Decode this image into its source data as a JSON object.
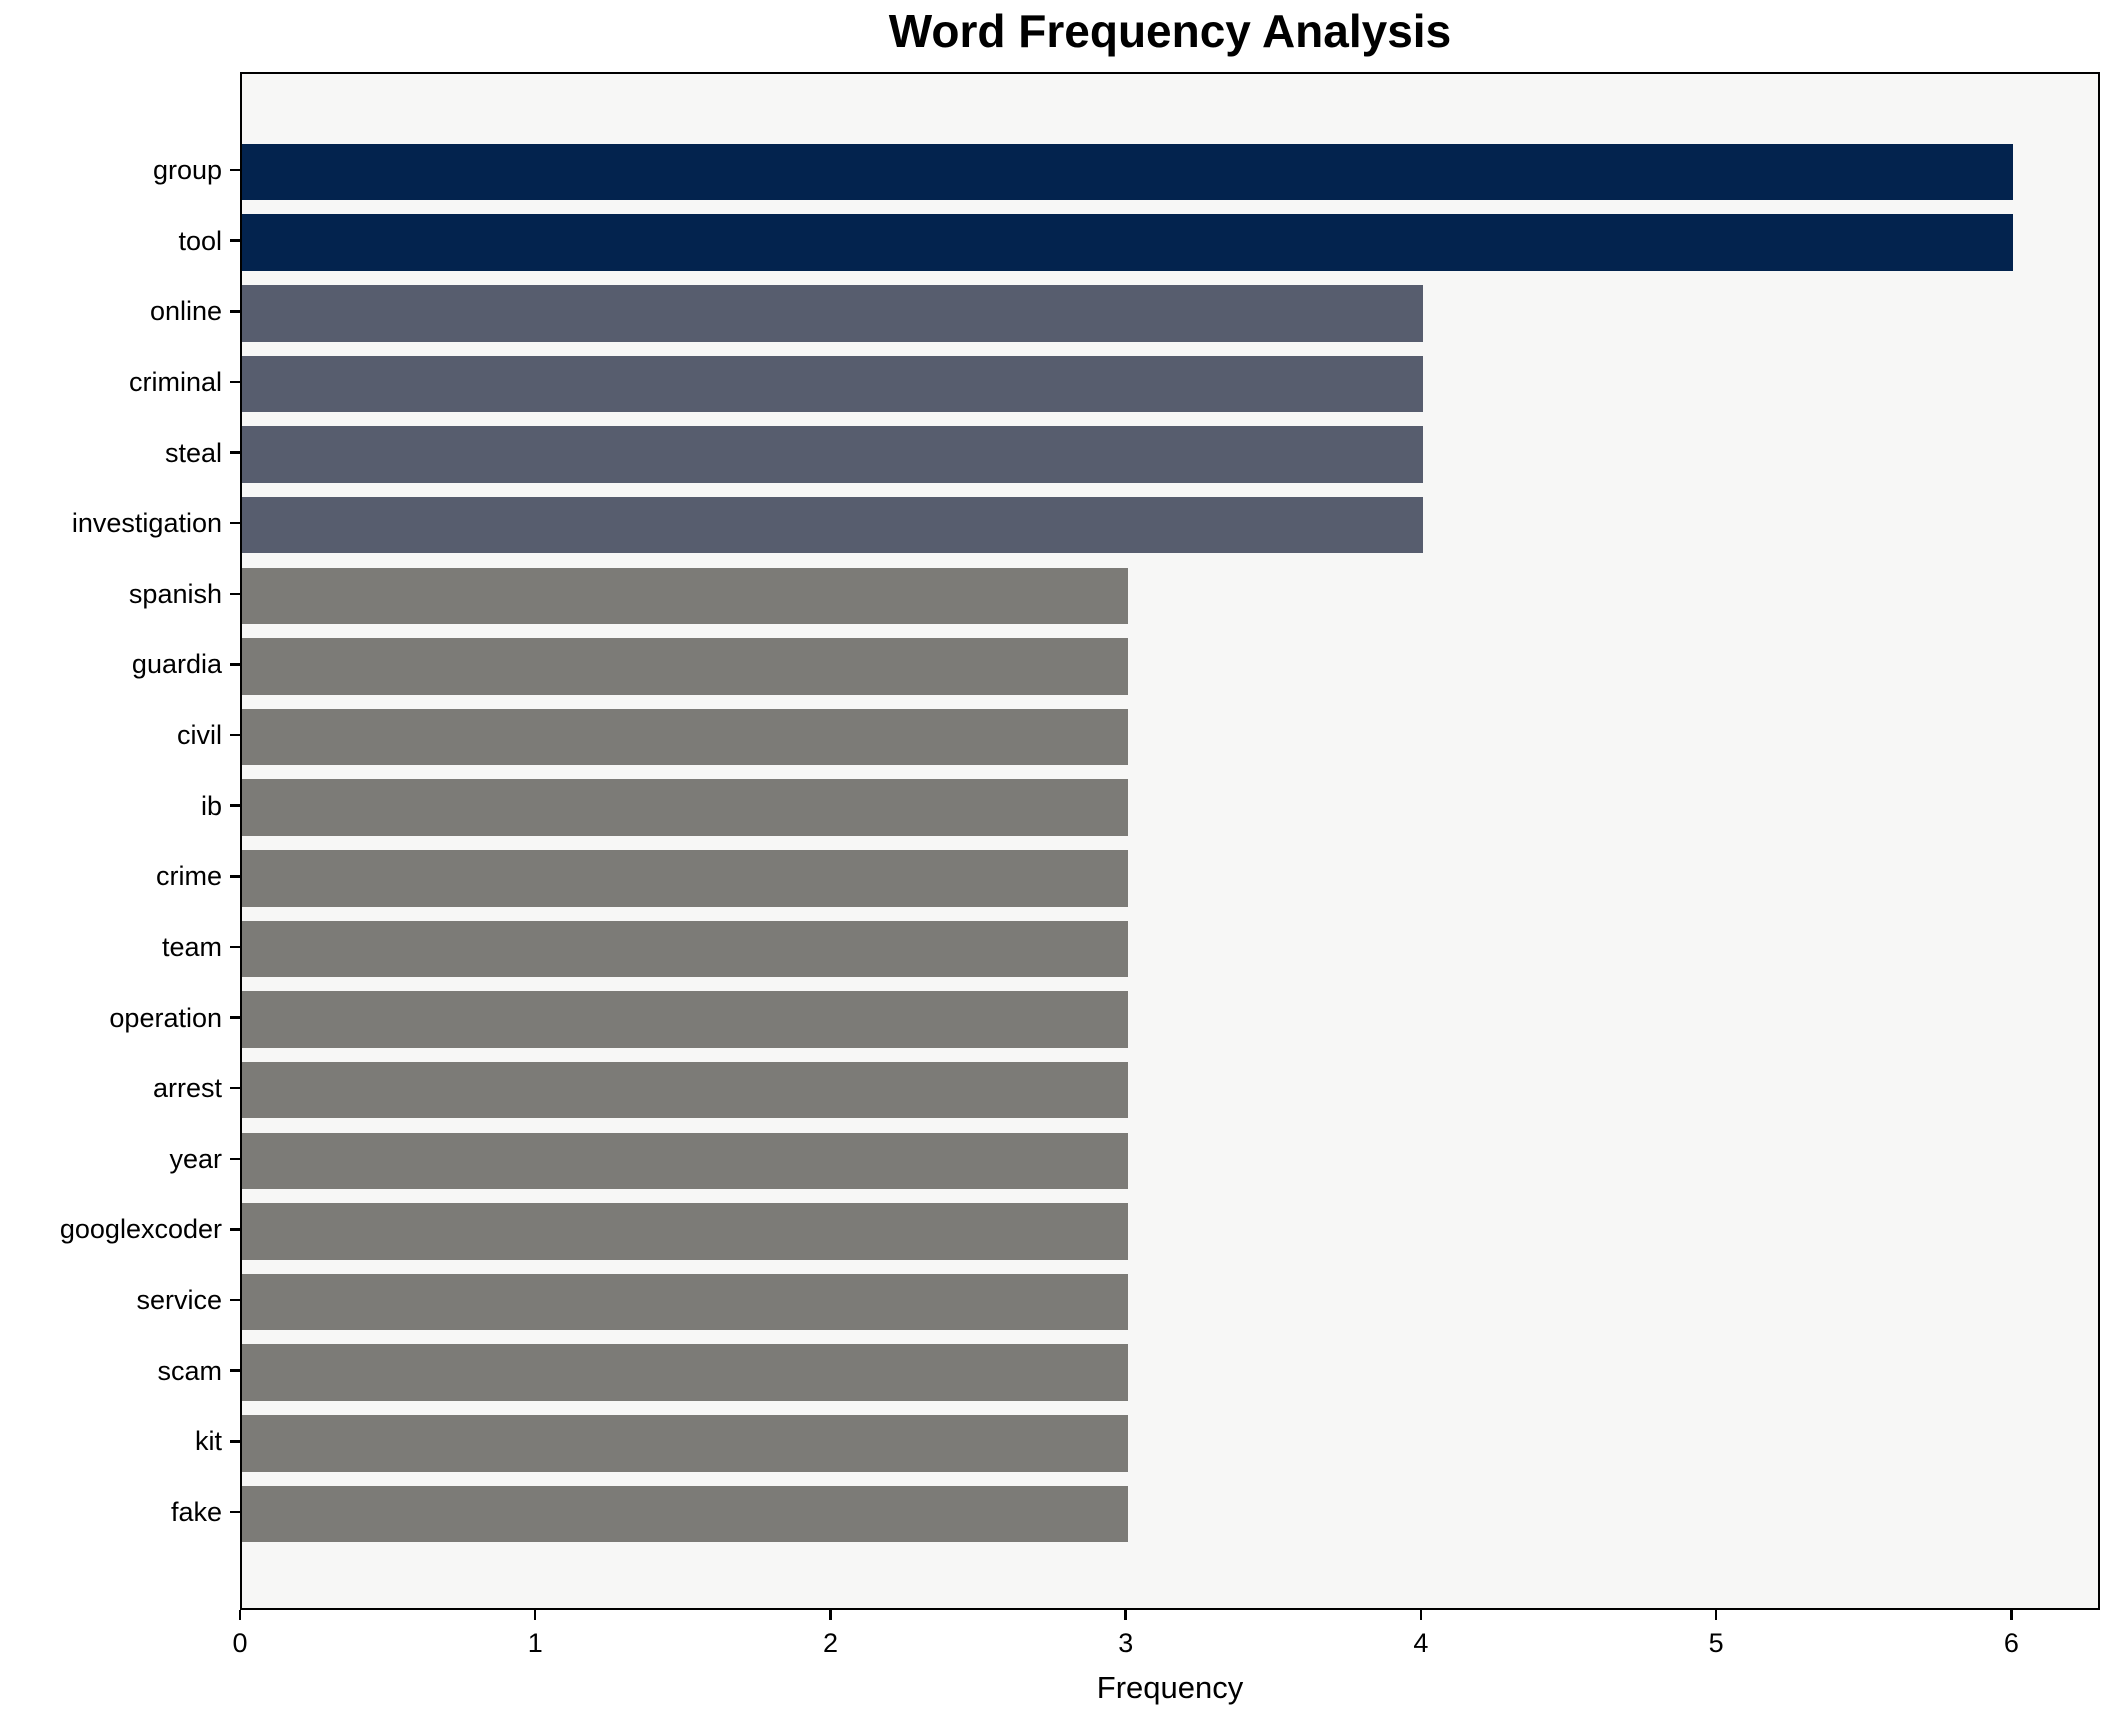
{
  "title": "Word Frequency Analysis",
  "xlabel": "Frequency",
  "colors": {
    "navy": "#03234e",
    "slate": "#575d6e",
    "gray": "#7c7b77",
    "plot_background": "#f7f7f6",
    "spine": "#000000",
    "figure_background": "#ffffff"
  },
  "chart_data": {
    "type": "bar",
    "orientation": "horizontal",
    "title": "Word Frequency Analysis",
    "xlabel": "Frequency",
    "ylabel": "",
    "categories": [
      "group",
      "tool",
      "online",
      "criminal",
      "steal",
      "investigation",
      "spanish",
      "guardia",
      "civil",
      "ib",
      "crime",
      "team",
      "operation",
      "arrest",
      "year",
      "googlexcoder",
      "service",
      "scam",
      "kit",
      "fake"
    ],
    "values": [
      6,
      6,
      4,
      4,
      4,
      4,
      3,
      3,
      3,
      3,
      3,
      3,
      3,
      3,
      3,
      3,
      3,
      3,
      3,
      3
    ],
    "bar_colors": [
      "#03234e",
      "#03234e",
      "#575d6e",
      "#575d6e",
      "#575d6e",
      "#575d6e",
      "#7c7b77",
      "#7c7b77",
      "#7c7b77",
      "#7c7b77",
      "#7c7b77",
      "#7c7b77",
      "#7c7b77",
      "#7c7b77",
      "#7c7b77",
      "#7c7b77",
      "#7c7b77",
      "#7c7b77",
      "#7c7b77",
      "#7c7b77"
    ],
    "xlim": [
      0,
      6.3
    ],
    "xticks": [
      0,
      1,
      2,
      3,
      4,
      5,
      6
    ],
    "grid": false,
    "legend": false,
    "bar_height_ratio": 0.8
  }
}
